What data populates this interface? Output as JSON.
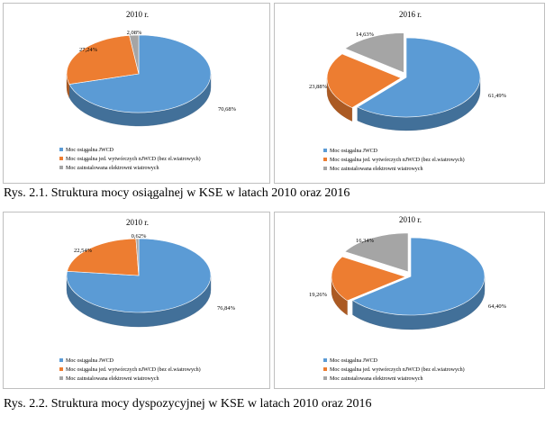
{
  "legend_labels": [
    "Moc osiągalna JWCD",
    "Moc osiągalna jed. wytwórczych nJWCD (bez el.wiatrowych)",
    "Moc zainstalowana elektrowni wiatrowych"
  ],
  "colors": {
    "jwcd": "#5b9bd5",
    "njwcd": "#ed7d31",
    "wind": "#a5a5a5"
  },
  "captions": {
    "fig1": "Rys. 2.1. Struktura mocy osiągalnej w KSE w latach 2010 oraz 2016",
    "fig2": "Rys. 2.2. Struktura mocy dyspozycyjnej w KSE w latach 2010 oraz 2016"
  },
  "chart_data": [
    {
      "type": "pie",
      "title": "2010 r.",
      "labels": [
        "Moc osiągalna JWCD",
        "Moc osiągalna jed. wytwórczych nJWCD (bez el.wiatrowych)",
        "Moc zainstalowana elektrowni wiatrowych"
      ],
      "values": [
        70.68,
        27.24,
        2.08
      ],
      "value_labels": [
        "70,68%",
        "27,24%",
        "2,08%"
      ],
      "exploded": false,
      "legend": "bottom"
    },
    {
      "type": "pie",
      "title": "2016 r.",
      "labels": [
        "Moc osiągalna JWCD",
        "Moc osiągalna jed. wytwórczych nJWCD (bez el.wiatrowych)",
        "Moc zainstalowana elektrowni wiatrowych"
      ],
      "values": [
        61.49,
        23.88,
        14.63
      ],
      "value_labels": [
        "61,49%",
        "23,88%",
        "14,63%"
      ],
      "exploded": true,
      "legend": "bottom"
    },
    {
      "type": "pie",
      "title": "2010 r.",
      "labels": [
        "Moc osiągalna JWCD",
        "Moc osiągalna jed. wytwórczych nJWCD (bez el.wiatrowych)",
        "Moc zainstalowana elektrowni wiatrowych"
      ],
      "values": [
        76.84,
        22.54,
        0.62
      ],
      "value_labels": [
        "76,84%",
        "22,54%",
        "0,62%"
      ],
      "exploded": false,
      "legend": "bottom"
    },
    {
      "type": "pie",
      "title": "2010 r.",
      "labels": [
        "Moc osiągalna JWCD",
        "Moc osiągalna jed. wytwórczych nJWCD (bez el.wiatrowych)",
        "Moc zainstalowana elektrowni wiatrowych"
      ],
      "values": [
        64.4,
        19.26,
        16.34
      ],
      "value_labels": [
        "64,40%",
        "19,26%",
        "16,34%"
      ],
      "exploded": true,
      "legend": "bottom"
    }
  ]
}
